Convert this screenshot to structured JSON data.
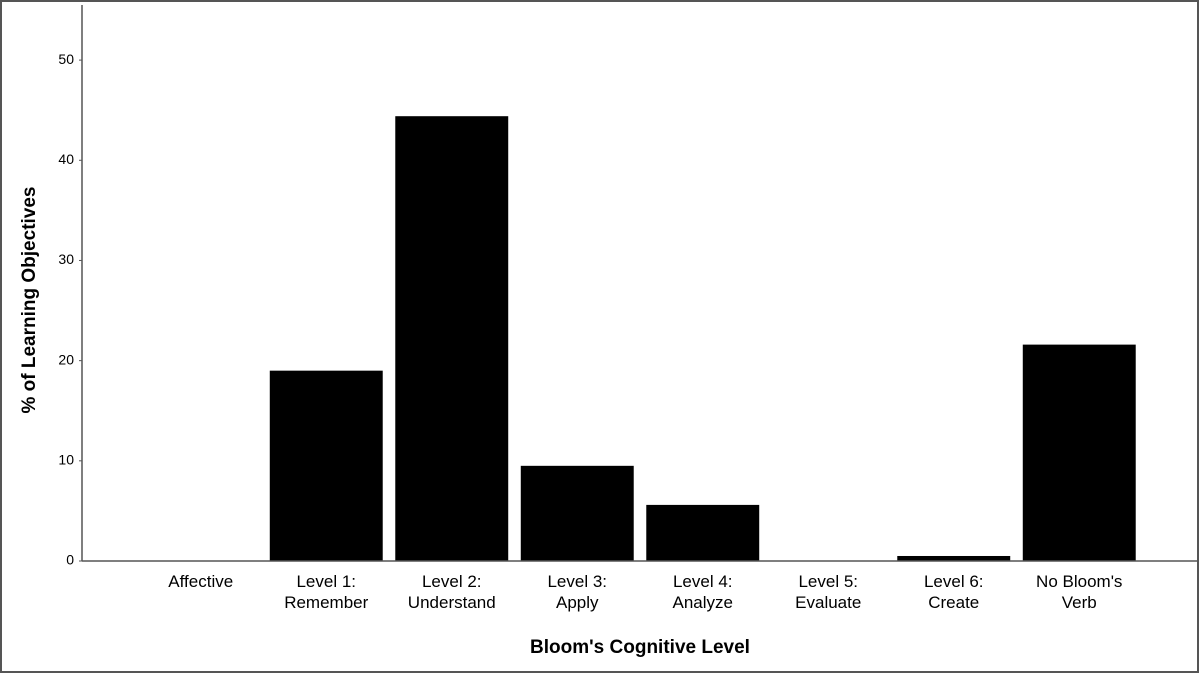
{
  "chart_data": {
    "type": "bar",
    "x_label": "Bloom's Cognitive Level",
    "y_label": "% of Learning Objectives",
    "categories": [
      "Affective",
      "Level 1:\nRemember",
      "Level 2:\nUnderstand",
      "Level 3:\nApply",
      "Level 4:\nAnalyze",
      "Level 5:\nEvaluate",
      "Level 6:\nCreate",
      "No Bloom's\nVerb"
    ],
    "values": [
      0,
      19.0,
      44.4,
      9.5,
      5.6,
      0,
      0.5,
      21.6
    ],
    "color": "#000000",
    "ylim": [
      0,
      55.5
    ],
    "yticks": [
      0,
      10,
      20,
      30,
      40,
      50
    ],
    "grid": false
  }
}
